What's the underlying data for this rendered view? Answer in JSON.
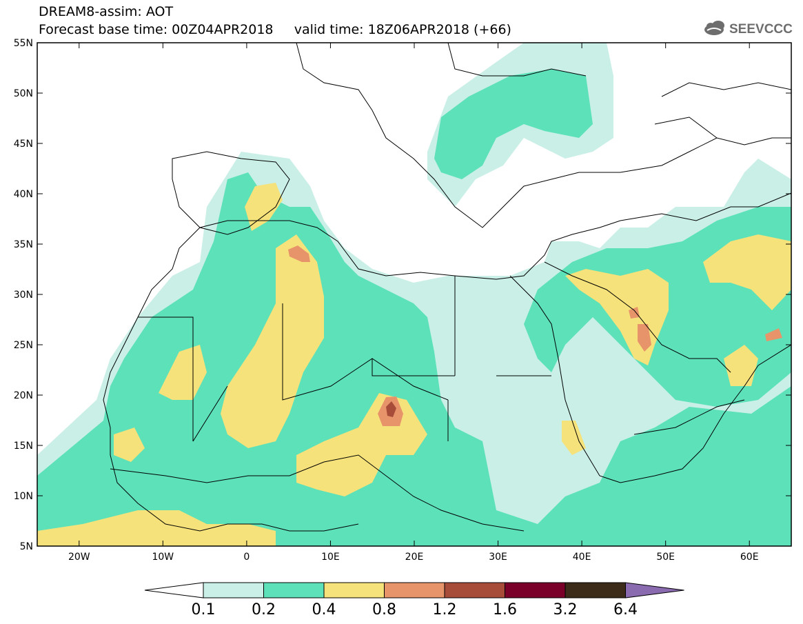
{
  "header": {
    "title_line1": "DREAM8-assim: AOT",
    "title_line2": "Forecast base time: 00Z04APR2018     valid time: 18Z06APR2018 (+66)",
    "logo_text": "SEEVCCC"
  },
  "map": {
    "lon_ticks": [
      "20W",
      "10W",
      "0",
      "10E",
      "20E",
      "30E",
      "40E",
      "50E",
      "60E"
    ],
    "lat_ticks": [
      "55N",
      "50N",
      "45N",
      "40N",
      "35N",
      "30N",
      "25N",
      "20N",
      "15N",
      "10N",
      "5N"
    ],
    "lon_range": [
      -25,
      65
    ],
    "lat_range": [
      5,
      55
    ],
    "variable": "AOT"
  },
  "legend": {
    "thresholds": [
      "0.1",
      "0.2",
      "0.4",
      "0.8",
      "1.2",
      "1.6",
      "3.2",
      "6.4"
    ],
    "colors": [
      "#ffffff",
      "#c9efe6",
      "#5ce1b9",
      "#f6e27a",
      "#e8946a",
      "#a84c3a",
      "#7a0029",
      "#3d2b1a",
      "#8a6bb0"
    ]
  }
}
